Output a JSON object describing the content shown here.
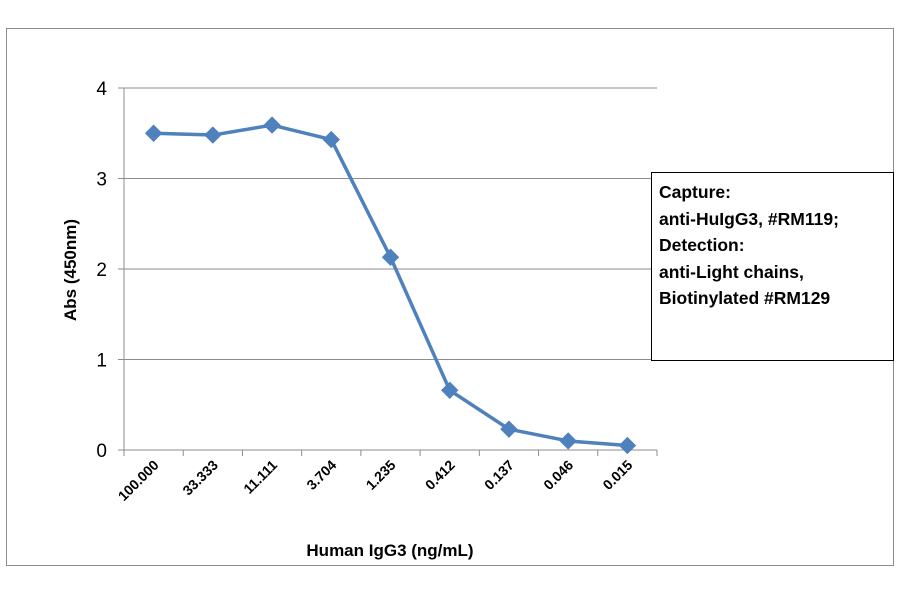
{
  "chart_data": {
    "type": "line",
    "categories": [
      "100.000",
      "33.333",
      "11.111",
      "3.704",
      "1.235",
      "0.412",
      "0.137",
      "0.046",
      "0.015"
    ],
    "series": [
      {
        "values": [
          3.5,
          3.48,
          3.59,
          3.43,
          2.13,
          0.66,
          0.23,
          0.1,
          0.05
        ],
        "color": "#4f81bd",
        "marker": "diamond"
      }
    ],
    "xlabel": "Human IgG3 (ng/mL)",
    "ylabel": "Abs (450nm)",
    "ylim": [
      0,
      4
    ],
    "yticks": [
      "0",
      "1",
      "2",
      "3",
      "4"
    ],
    "grid": "horizontal",
    "annotation": {
      "lines": [
        "Capture:",
        "anti-HuIgG3, #RM119;",
        "Detection:",
        "anti-Light chains,",
        "Biotinylated #RM129"
      ]
    }
  }
}
